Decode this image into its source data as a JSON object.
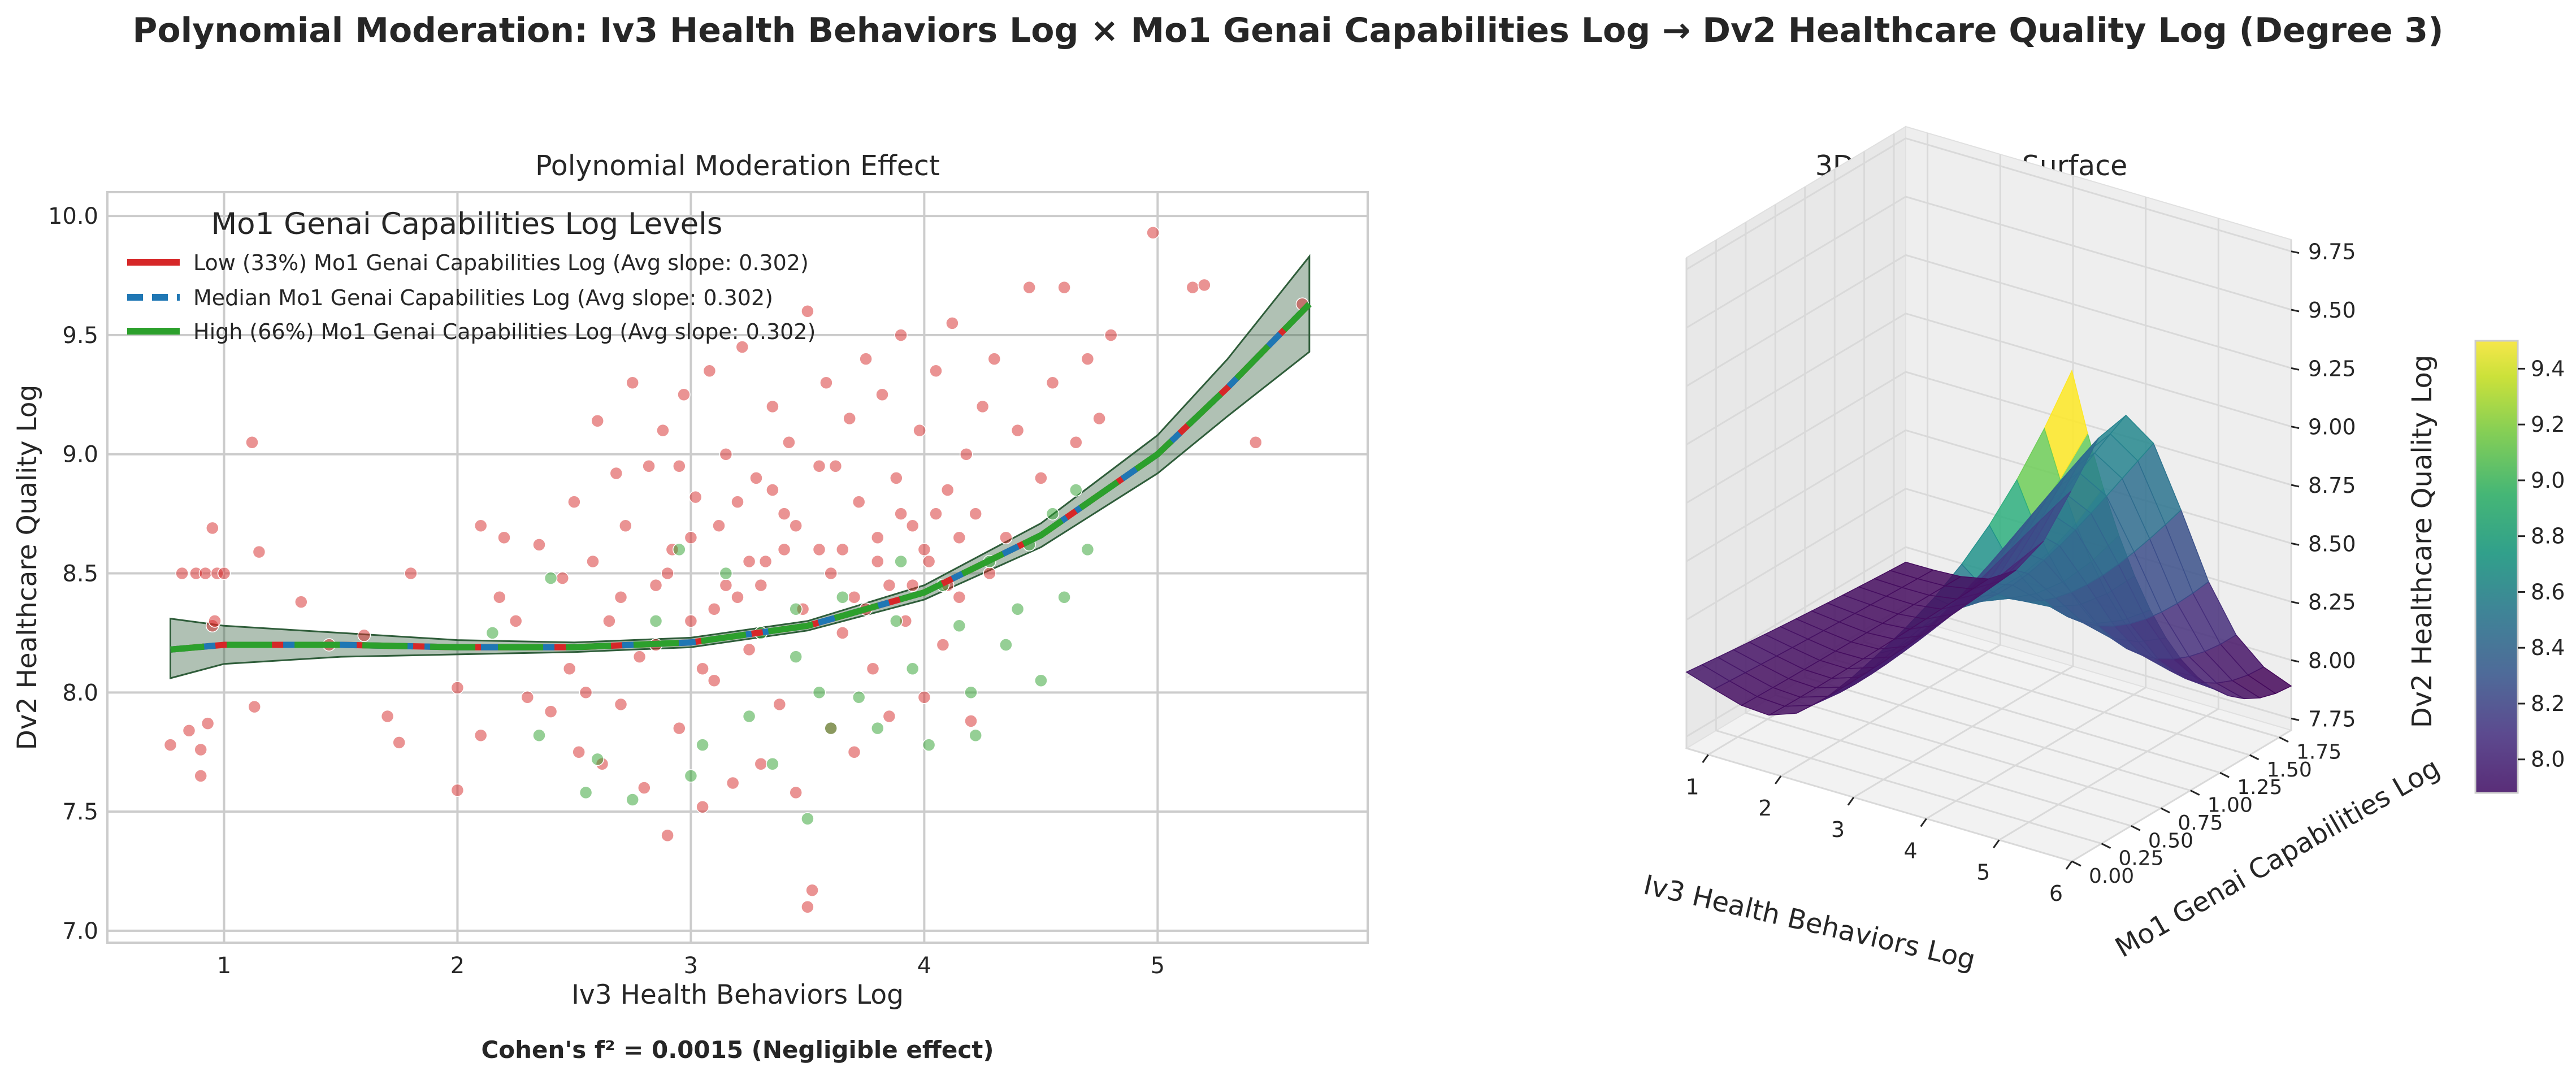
{
  "title": "Polynomial Moderation: Iv3 Health Behaviors Log × Mo1 Genai Capabilities Log → Dv2 Healthcare Quality Log (Degree 3)",
  "footnote": "Cohen's f² = 0.0015 (Negligible effect)",
  "colors": {
    "low": "#d62728",
    "median": "#1f77b4",
    "high": "#2ca02c",
    "band": "#2f5d3a",
    "grid": "#cccccc",
    "panel_bg": "#ffffff",
    "pane": "#f2f2f2"
  },
  "chart_data": [
    {
      "type": "scatter",
      "title": "Polynomial Moderation Effect",
      "xlabel": "Iv3 Health Behaviors Log",
      "ylabel": "Dv2 Healthcare Quality Log",
      "xlim": [
        0.5,
        5.9
      ],
      "ylim": [
        6.95,
        10.1
      ],
      "xticks": [
        "1",
        "2",
        "3",
        "4",
        "5"
      ],
      "yticks": [
        "7.0",
        "7.5",
        "8.0",
        "8.5",
        "9.0",
        "9.5",
        "10.0"
      ],
      "grid": true,
      "legend": {
        "title": "Mo1 Genai Capabilities Log Levels",
        "placement": "upper-left",
        "entries": [
          "Low (33%) Mo1 Genai Capabilities Log (Avg slope: 0.302)",
          "Median Mo1 Genai Capabilities Log (Avg slope: 0.302)",
          "High (66%) Mo1 Genai Capabilities Log (Avg slope: 0.302)"
        ]
      },
      "fit_curve": {
        "x": [
          0.77,
          1.0,
          1.5,
          2.0,
          2.5,
          3.0,
          3.5,
          4.0,
          4.5,
          5.0,
          5.3,
          5.65
        ],
        "y": [
          8.18,
          8.2,
          8.2,
          8.19,
          8.19,
          8.21,
          8.28,
          8.42,
          8.66,
          9.0,
          9.28,
          9.63
        ],
        "ci_lower": [
          8.06,
          8.12,
          8.15,
          8.16,
          8.17,
          8.19,
          8.26,
          8.39,
          8.61,
          8.92,
          9.16,
          9.43
        ],
        "ci_upper": [
          8.31,
          8.28,
          8.25,
          8.22,
          8.21,
          8.23,
          8.3,
          8.45,
          8.71,
          9.08,
          9.4,
          9.83
        ]
      },
      "scatter_series": [
        {
          "name": "Low (33%)",
          "color": "#d62728",
          "points": [
            [
              0.77,
              7.78
            ],
            [
              0.82,
              8.5
            ],
            [
              0.85,
              7.84
            ],
            [
              0.88,
              8.5
            ],
            [
              0.9,
              7.76
            ],
            [
              0.9,
              7.65
            ],
            [
              0.92,
              8.5
            ],
            [
              0.93,
              7.87
            ],
            [
              0.95,
              8.69
            ],
            [
              0.95,
              8.28
            ],
            [
              0.97,
              8.5
            ],
            [
              1.0,
              8.5
            ],
            [
              0.96,
              8.3
            ],
            [
              1.12,
              9.05
            ],
            [
              1.13,
              7.94
            ],
            [
              1.15,
              8.59
            ],
            [
              1.33,
              8.38
            ],
            [
              1.45,
              8.2
            ],
            [
              1.6,
              8.24
            ],
            [
              1.7,
              7.9
            ],
            [
              1.75,
              7.79
            ],
            [
              1.8,
              8.5
            ],
            [
              2.0,
              7.59
            ],
            [
              2.0,
              8.02
            ],
            [
              2.1,
              8.7
            ],
            [
              2.1,
              7.82
            ],
            [
              2.18,
              8.4
            ],
            [
              2.2,
              8.65
            ],
            [
              2.25,
              8.3
            ],
            [
              2.3,
              7.98
            ],
            [
              2.35,
              8.62
            ],
            [
              2.4,
              7.92
            ],
            [
              2.45,
              8.48
            ],
            [
              2.48,
              8.1
            ],
            [
              2.5,
              8.8
            ],
            [
              2.52,
              7.75
            ],
            [
              2.55,
              8.0
            ],
            [
              2.58,
              8.55
            ],
            [
              2.6,
              9.14
            ],
            [
              2.62,
              7.7
            ],
            [
              2.65,
              8.3
            ],
            [
              2.68,
              8.92
            ],
            [
              2.7,
              7.95
            ],
            [
              2.72,
              8.7
            ],
            [
              2.75,
              9.3
            ],
            [
              2.78,
              8.15
            ],
            [
              2.8,
              7.6
            ],
            [
              2.82,
              8.95
            ],
            [
              2.85,
              8.45
            ],
            [
              2.88,
              9.1
            ],
            [
              2.9,
              7.4
            ],
            [
              2.92,
              8.6
            ],
            [
              2.95,
              7.85
            ],
            [
              2.97,
              9.25
            ],
            [
              3.0,
              8.3
            ],
            [
              3.02,
              8.82
            ],
            [
              3.05,
              7.52
            ],
            [
              3.08,
              9.35
            ],
            [
              3.1,
              8.05
            ],
            [
              3.12,
              8.7
            ],
            [
              3.15,
              9.0
            ],
            [
              3.18,
              7.62
            ],
            [
              3.2,
              8.4
            ],
            [
              3.22,
              9.45
            ],
            [
              3.25,
              8.18
            ],
            [
              3.28,
              8.9
            ],
            [
              3.3,
              7.7
            ],
            [
              3.32,
              8.55
            ],
            [
              3.35,
              9.2
            ],
            [
              3.38,
              7.95
            ],
            [
              3.4,
              8.75
            ],
            [
              3.42,
              9.05
            ],
            [
              3.45,
              7.58
            ],
            [
              3.48,
              8.35
            ],
            [
              3.5,
              9.6
            ],
            [
              3.5,
              7.1
            ],
            [
              3.52,
              7.17
            ],
            [
              3.55,
              8.6
            ],
            [
              3.58,
              9.3
            ],
            [
              3.6,
              7.85
            ],
            [
              3.62,
              8.95
            ],
            [
              3.65,
              8.25
            ],
            [
              3.68,
              9.15
            ],
            [
              3.7,
              7.75
            ],
            [
              3.72,
              8.8
            ],
            [
              3.75,
              9.4
            ],
            [
              3.78,
              8.1
            ],
            [
              3.8,
              8.65
            ],
            [
              3.82,
              9.25
            ],
            [
              3.85,
              7.9
            ],
            [
              3.88,
              8.9
            ],
            [
              3.9,
              9.5
            ],
            [
              3.92,
              8.3
            ],
            [
              3.95,
              8.7
            ],
            [
              3.98,
              9.1
            ],
            [
              4.0,
              7.98
            ],
            [
              4.02,
              8.55
            ],
            [
              4.05,
              9.35
            ],
            [
              4.08,
              8.2
            ],
            [
              4.1,
              8.85
            ],
            [
              4.12,
              9.55
            ],
            [
              4.15,
              8.4
            ],
            [
              4.18,
              9.0
            ],
            [
              4.2,
              7.88
            ],
            [
              4.22,
              8.75
            ],
            [
              4.25,
              9.2
            ],
            [
              4.28,
              8.5
            ],
            [
              4.3,
              9.4
            ],
            [
              4.35,
              8.65
            ],
            [
              4.4,
              9.1
            ],
            [
              4.45,
              9.7
            ],
            [
              4.5,
              8.9
            ],
            [
              4.55,
              9.3
            ],
            [
              4.6,
              9.7
            ],
            [
              4.65,
              9.05
            ],
            [
              4.7,
              9.4
            ],
            [
              4.75,
              9.15
            ],
            [
              4.8,
              9.5
            ],
            [
              4.98,
              9.93
            ],
            [
              5.15,
              9.7
            ],
            [
              5.2,
              9.71
            ],
            [
              5.42,
              9.05
            ],
            [
              5.62,
              9.63
            ],
            [
              2.7,
              8.4
            ],
            [
              2.9,
              8.5
            ],
            [
              3.0,
              8.65
            ],
            [
              3.1,
              8.35
            ],
            [
              3.2,
              8.8
            ],
            [
              3.3,
              8.45
            ],
            [
              3.4,
              8.6
            ],
            [
              3.6,
              8.5
            ],
            [
              3.7,
              8.4
            ],
            [
              3.8,
              8.55
            ],
            [
              3.9,
              8.75
            ],
            [
              4.0,
              8.6
            ],
            [
              4.1,
              8.45
            ],
            [
              2.85,
              8.2
            ],
            [
              3.05,
              8.1
            ],
            [
              3.25,
              8.55
            ],
            [
              3.45,
              8.7
            ],
            [
              3.65,
              8.6
            ],
            [
              3.85,
              8.45
            ],
            [
              4.05,
              8.75
            ],
            [
              2.95,
              8.95
            ],
            [
              3.15,
              8.45
            ],
            [
              3.35,
              8.85
            ],
            [
              3.55,
              8.95
            ],
            [
              3.75,
              8.35
            ],
            [
              3.95,
              8.45
            ],
            [
              4.15,
              8.65
            ]
          ]
        },
        {
          "name": "High (66%)",
          "color": "#2ca02c",
          "points": [
            [
              2.15,
              8.25
            ],
            [
              2.35,
              7.82
            ],
            [
              2.4,
              8.48
            ],
            [
              2.55,
              7.58
            ],
            [
              2.6,
              7.72
            ],
            [
              2.75,
              7.55
            ],
            [
              2.85,
              8.3
            ],
            [
              3.05,
              7.78
            ],
            [
              3.15,
              8.5
            ],
            [
              3.25,
              7.9
            ],
            [
              3.35,
              7.7
            ],
            [
              3.45,
              8.15
            ],
            [
              3.5,
              7.47
            ],
            [
              3.55,
              8.0
            ],
            [
              3.65,
              8.4
            ],
            [
              3.72,
              7.98
            ],
            [
              3.8,
              7.85
            ],
            [
              3.88,
              8.3
            ],
            [
              3.95,
              8.1
            ],
            [
              4.02,
              7.78
            ],
            [
              4.08,
              8.45
            ],
            [
              4.15,
              8.28
            ],
            [
              4.22,
              7.82
            ],
            [
              4.28,
              8.55
            ],
            [
              4.35,
              8.2
            ],
            [
              4.4,
              8.35
            ],
            [
              4.45,
              8.62
            ],
            [
              4.5,
              8.05
            ],
            [
              4.55,
              8.75
            ],
            [
              4.6,
              8.4
            ],
            [
              4.65,
              8.85
            ],
            [
              4.7,
              8.6
            ],
            [
              3.0,
              7.65
            ],
            [
              3.3,
              8.25
            ],
            [
              3.6,
              7.85
            ],
            [
              3.9,
              8.55
            ],
            [
              4.2,
              8.0
            ],
            [
              2.95,
              8.6
            ],
            [
              3.45,
              8.35
            ]
          ]
        }
      ]
    },
    {
      "type": "surface",
      "title": "3D Interaction Surface",
      "xlabel": "Iv3 Health Behaviors Log",
      "ylabel": "Mo1 Genai Capabilities Log",
      "zlabel": "Dv2 Healthcare Quality Log",
      "xlim": [
        0.7,
        6.0
      ],
      "ylim": [
        0.0,
        1.85
      ],
      "zlim": [
        7.7,
        9.8
      ],
      "xticks": [
        "1",
        "2",
        "3",
        "4",
        "5",
        "6"
      ],
      "yticks": [
        "0.00",
        "0.25",
        "0.50",
        "0.75",
        "1.00",
        "1.25",
        "1.50",
        "1.75"
      ],
      "zticks": [
        "7.75",
        "8.00",
        "8.25",
        "8.50",
        "8.75",
        "9.00",
        "9.25",
        "9.50",
        "9.75"
      ],
      "colormap": "viridis",
      "colorbar_ticks": [
        "8.0",
        "8.2",
        "8.4",
        "8.6",
        "8.8",
        "9.0",
        "9.2",
        "9.4"
      ],
      "colorbar_range": [
        7.88,
        9.5
      ]
    }
  ]
}
